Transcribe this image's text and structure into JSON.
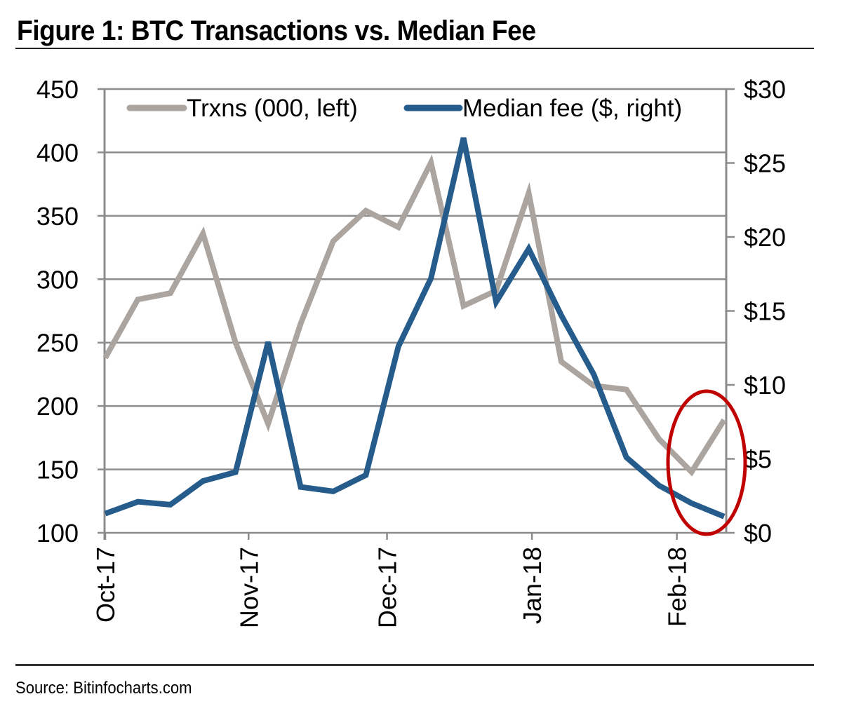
{
  "title": "Figure 1: BTC Transactions vs. Median Fee",
  "source": "Source: Bitinfocharts.com",
  "colors": {
    "trxns": "#aba49f",
    "fee": "#255c8c",
    "highlight": "#c00000",
    "grid": "#8c8c8c"
  },
  "chart_data": {
    "type": "line",
    "title": "Figure 1: BTC Transactions vs. Median Fee",
    "xlabel": "",
    "ylabel": "Trxns (000)",
    "y2label": "Median fee ($)",
    "ylim": [
      100,
      450
    ],
    "y2lim": [
      0,
      30
    ],
    "yticks": [
      "450",
      "400",
      "350",
      "300",
      "250",
      "200",
      "150",
      "100"
    ],
    "yticks_values": [
      450,
      400,
      350,
      300,
      250,
      200,
      150,
      100
    ],
    "y2ticks": [
      "$30",
      "$25",
      "$20",
      "$15",
      "$10",
      "$5",
      "$0"
    ],
    "y2ticks_values": [
      30,
      25,
      20,
      15,
      10,
      5,
      0
    ],
    "xticks": [
      "Oct-17",
      "Nov-17",
      "Dec-17",
      "Jan-18",
      "Feb-18"
    ],
    "xticks_index": [
      0,
      4.4,
      8.65,
      13.1,
      17.55
    ],
    "grid": true,
    "legend": "top",
    "x": [
      "w1",
      "w2",
      "w3",
      "w4",
      "w5",
      "w6",
      "w7",
      "w8",
      "w9",
      "w10",
      "w11",
      "w12",
      "w13",
      "w14",
      "w15",
      "w16",
      "w17",
      "w18",
      "w19",
      "w20"
    ],
    "series": [
      {
        "name": "Trxns (000, left)",
        "axis": "left",
        "values": [
          238,
          284,
          289,
          336,
          250,
          186,
          265,
          330,
          354,
          341,
          392,
          279,
          291,
          368,
          235,
          216,
          213,
          174,
          148,
          189
        ]
      },
      {
        "name": "Median fee ($, right)",
        "axis": "right",
        "values": [
          1.3,
          2.1,
          1.9,
          3.5,
          4.1,
          12.9,
          3.1,
          2.8,
          3.9,
          12.6,
          17.2,
          26.7,
          15.6,
          19.2,
          14.7,
          10.7,
          5.1,
          3.2,
          2.0,
          1.1
        ]
      }
    ],
    "annotations": [
      {
        "type": "ellipse",
        "label": "highlight",
        "around_points": [
          18,
          19
        ]
      }
    ]
  }
}
